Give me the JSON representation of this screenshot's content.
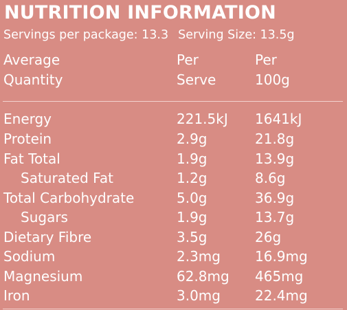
{
  "panel": {
    "title": "NUTRITION INFORMATION",
    "servings_per_package": "Servings per package: 13.3",
    "serving_size": "Serving Size: 13.5g"
  },
  "header": {
    "col1_line1": "Average",
    "col1_line2": "Quantity",
    "col2_line1": "Per",
    "col2_line2": "Serve",
    "col3_line1": "Per",
    "col3_line2": "100g"
  },
  "rows": [
    {
      "name": "Energy",
      "serve": "221.5kJ",
      "per100": "1641kJ"
    },
    {
      "name": "Protein",
      "serve": "2.9g",
      "per100": "21.8g"
    },
    {
      "name": "Fat Total",
      "serve": "1.9g",
      "per100": "13.9g"
    },
    {
      "name": "Saturated Fat",
      "serve": "1.2g",
      "per100": "8.6g"
    },
    {
      "name": "Total Carbohydrate",
      "serve": "5.0g",
      "per100": "36.9g"
    },
    {
      "name": "Sugars",
      "serve": "1.9g",
      "per100": "13.7g"
    },
    {
      "name": "Dietary Fibre",
      "serve": "3.5g",
      "per100": "26g"
    },
    {
      "name": "Sodium",
      "serve": "2.3mg",
      "per100": "16.9mg"
    },
    {
      "name": "Magnesium",
      "serve": "62.8mg",
      "per100": "465mg"
    },
    {
      "name": "Iron",
      "serve": "3.0mg",
      "per100": "22.4mg"
    }
  ],
  "colors": {
    "background": "#d88c84",
    "text": "#ffffff",
    "rule": "#f3d3cf"
  }
}
